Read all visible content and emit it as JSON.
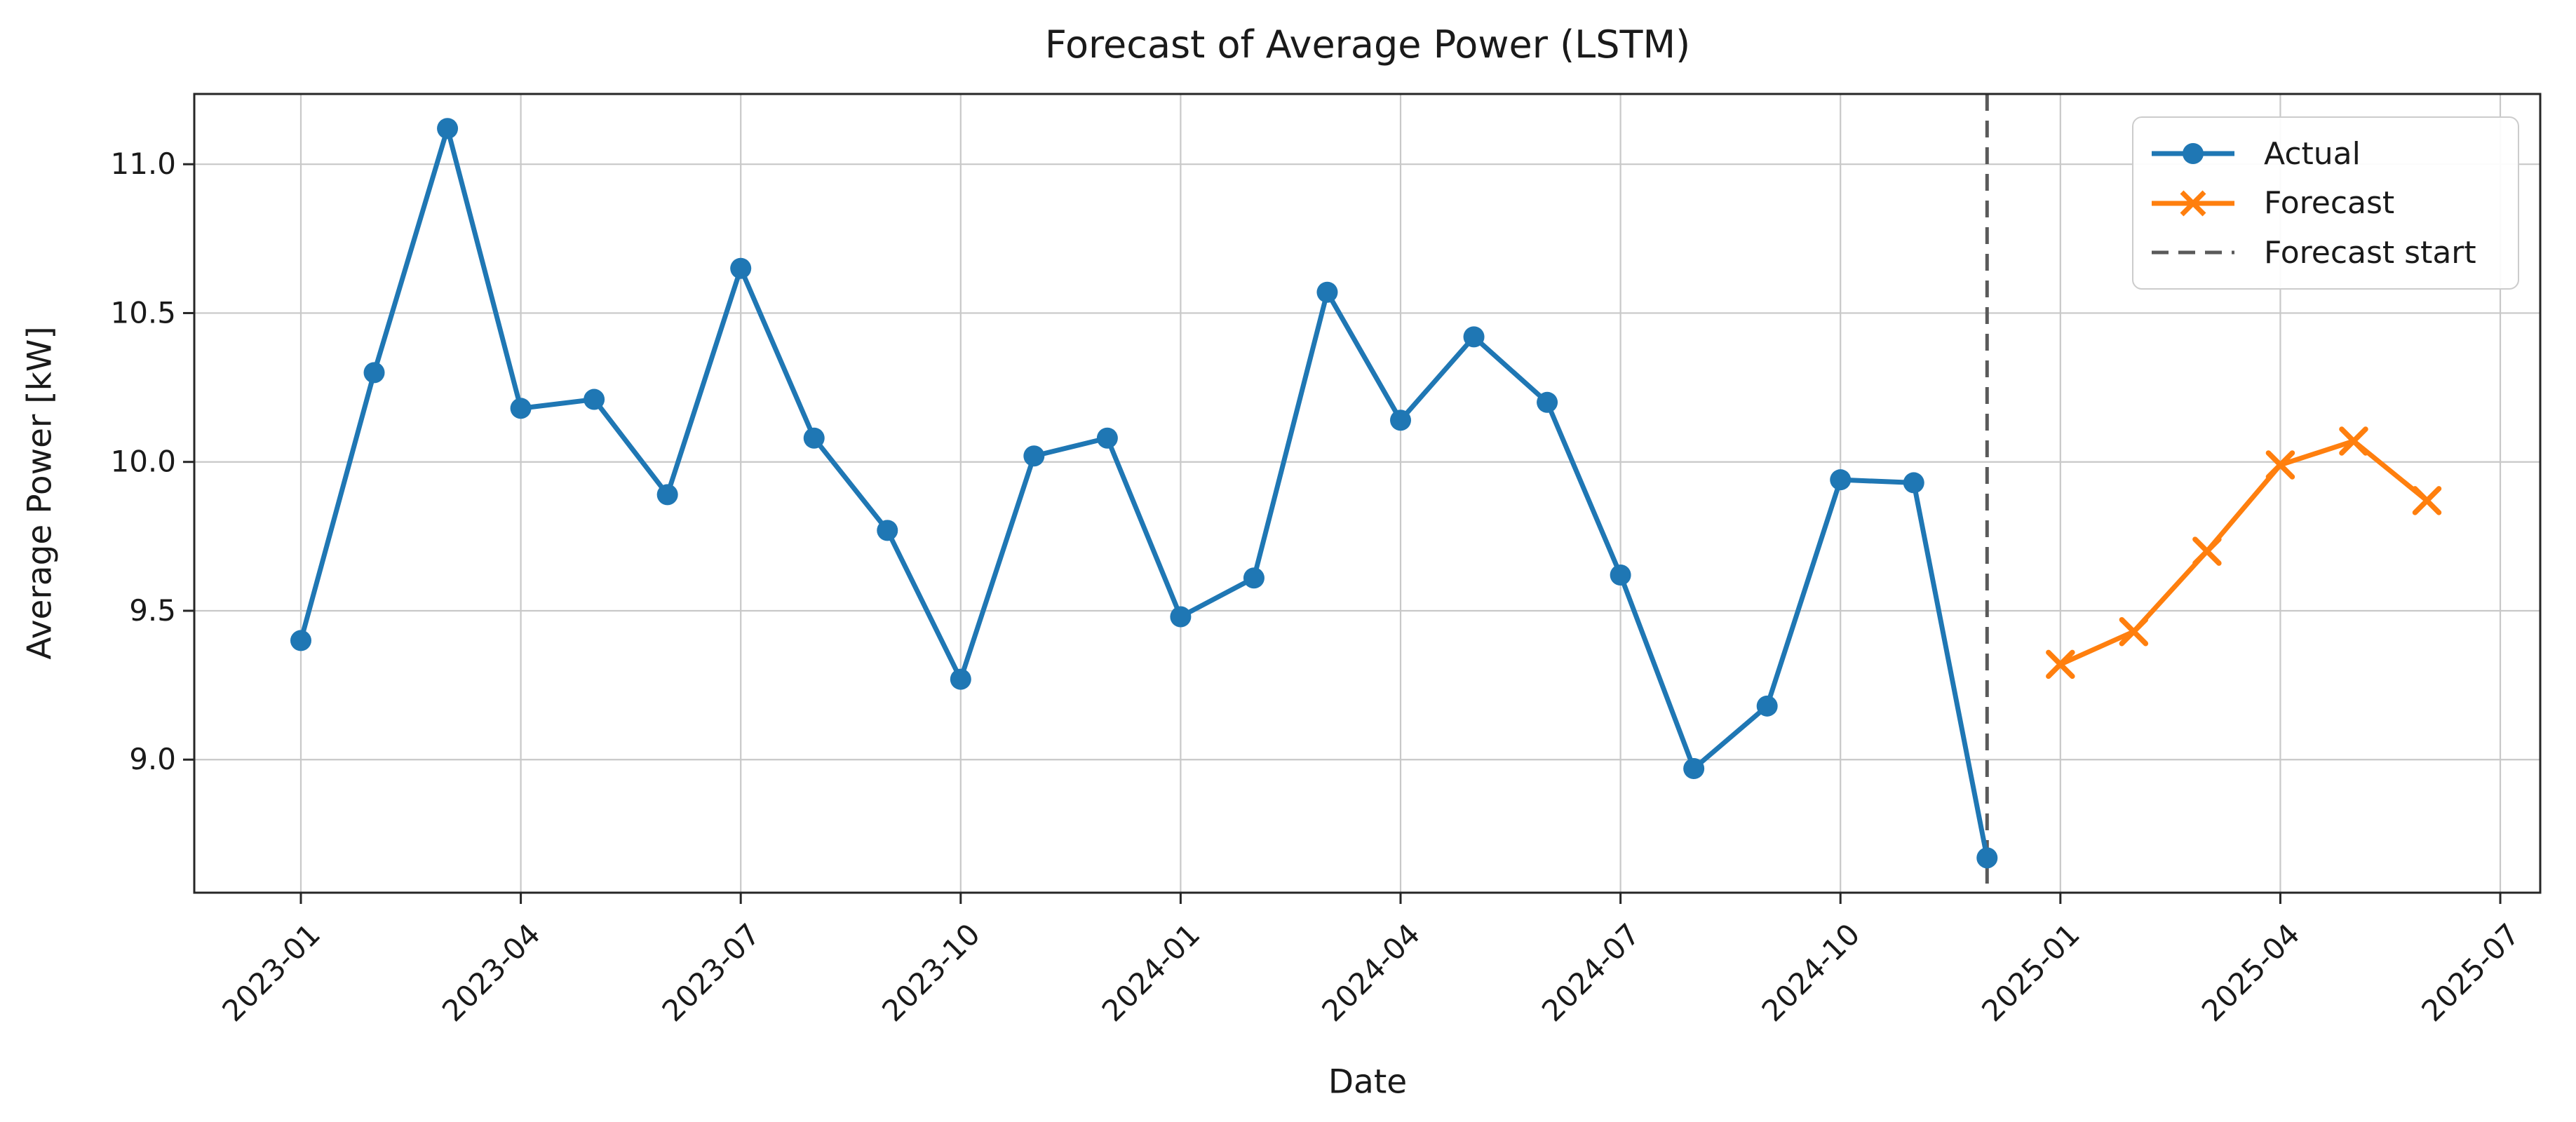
{
  "chart_data": {
    "type": "line",
    "title": "Forecast of Average Power (LSTM)",
    "xlabel": "Date",
    "ylabel": "Average Power [kW]",
    "grid": true,
    "legend_position": "upper right",
    "ylim": [
      8.553,
      11.236
    ],
    "xlim_months": [
      -1.454,
      30.545
    ],
    "y_ticks": [
      9.0,
      9.5,
      10.0,
      10.5,
      11.0
    ],
    "y_tick_labels": [
      "9.0",
      "9.5",
      "10.0",
      "10.5",
      "11.0"
    ],
    "x_ticks": [
      "2023-01",
      "2023-04",
      "2023-07",
      "2023-10",
      "2024-01",
      "2024-04",
      "2024-07",
      "2024-10",
      "2025-01",
      "2025-04",
      "2025-07"
    ],
    "series": [
      {
        "name": "Actual",
        "color": "#1f77b4",
        "marker": "circle",
        "x": [
          "2023-01",
          "2023-02",
          "2023-03",
          "2023-04",
          "2023-05",
          "2023-06",
          "2023-07",
          "2023-08",
          "2023-09",
          "2023-10",
          "2023-11",
          "2023-12",
          "2024-01",
          "2024-02",
          "2024-03",
          "2024-04",
          "2024-05",
          "2024-06",
          "2024-07",
          "2024-08",
          "2024-09",
          "2024-10",
          "2024-11",
          "2024-12"
        ],
        "values": [
          9.4,
          10.3,
          11.12,
          10.18,
          10.21,
          9.89,
          10.65,
          10.08,
          9.77,
          9.27,
          10.02,
          10.08,
          9.48,
          9.61,
          10.57,
          10.14,
          10.42,
          10.2,
          9.62,
          8.97,
          9.18,
          9.94,
          9.93,
          8.67
        ]
      },
      {
        "name": "Forecast",
        "color": "#ff7f0e",
        "marker": "x",
        "x": [
          "2025-01",
          "2025-02",
          "2025-03",
          "2025-04",
          "2025-05",
          "2025-06"
        ],
        "values": [
          9.32,
          9.43,
          9.7,
          9.99,
          10.07,
          9.87
        ]
      }
    ],
    "annotations": [
      {
        "label": "Forecast start",
        "type": "vline",
        "x": "2024-12",
        "color": "#5a5a5a",
        "style": "dashed"
      }
    ],
    "colors": {
      "grid": "#c8c8c8",
      "spine": "#262626",
      "text": "#1a1a1a"
    }
  }
}
